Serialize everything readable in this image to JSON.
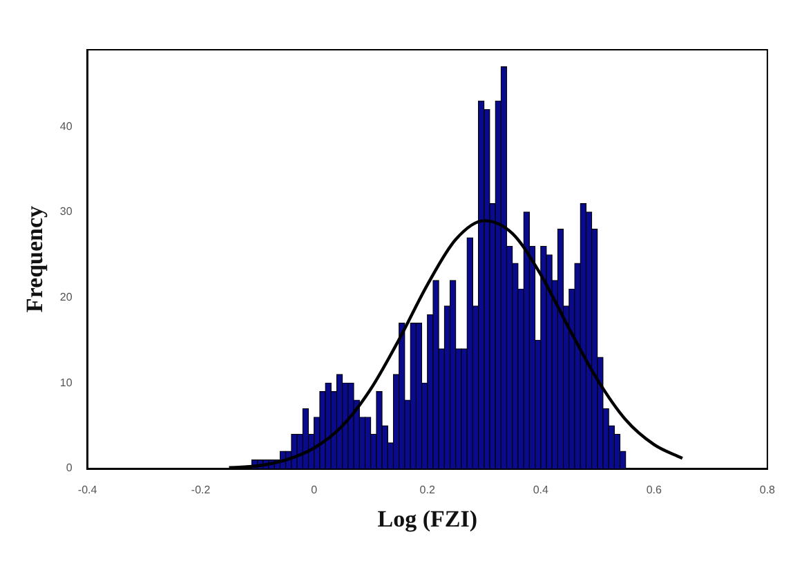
{
  "chart_data": {
    "type": "histogram",
    "xlabel": "Log (FZI)",
    "ylabel": "Frequency",
    "bins": [
      -0.11,
      -0.1,
      -0.09,
      -0.08,
      -0.07,
      -0.06,
      -0.05,
      -0.04,
      -0.03,
      -0.02,
      -0.01,
      0,
      0.01,
      0.02,
      0.03,
      0.04,
      0.05,
      0.06,
      0.07,
      0.08,
      0.09,
      0.1,
      0.11,
      0.12,
      0.13,
      0.14,
      0.15,
      0.16,
      0.17,
      0.18,
      0.19,
      0.2,
      0.21,
      0.22,
      0.23,
      0.24,
      0.25,
      0.26,
      0.27,
      0.28,
      0.29,
      0.3,
      0.31,
      0.32,
      0.33,
      0.34,
      0.35,
      0.36,
      0.37,
      0.38,
      0.39,
      0.4,
      0.41,
      0.42,
      0.43,
      0.44,
      0.45,
      0.46,
      0.47,
      0.48,
      0.49,
      0.5,
      0.51,
      0.52,
      0.53,
      0.54,
      0.55
    ],
    "values": [
      1,
      1,
      1,
      1,
      1,
      2,
      2,
      4,
      4,
      7,
      4,
      6,
      9,
      10,
      9,
      11,
      10,
      10,
      8,
      6,
      6,
      4,
      9,
      5,
      3,
      11,
      17,
      8,
      17,
      17,
      10,
      18,
      22,
      14,
      19,
      22,
      14,
      14,
      27,
      19,
      43,
      42,
      31,
      43,
      47,
      26,
      24,
      21,
      30,
      26,
      15,
      26,
      25,
      22,
      28,
      19,
      21,
      24,
      31,
      30,
      28,
      13,
      7,
      5,
      4,
      2
    ],
    "color": "#0a0a8c",
    "series": [
      {
        "type": "line",
        "color": "#000000",
        "x": [
          -0.15,
          -0.1,
          -0.05,
          0,
          0.05,
          0.1,
          0.15,
          0.2,
          0.25,
          0.3,
          0.35,
          0.4,
          0.45,
          0.5,
          0.55,
          0.6,
          0.65
        ],
        "values": [
          0.1,
          0.3,
          1,
          2.4,
          5,
          9.3,
          15.1,
          21.5,
          26.8,
          29,
          27.5,
          22.7,
          16.4,
          10.4,
          5.7,
          2.8,
          1.2
        ]
      }
    ],
    "xlim": [
      -0.4,
      0.8
    ],
    "xticks": [
      -0.4,
      -0.2,
      0,
      0.2,
      0.4,
      0.6,
      0.8
    ],
    "ylim": [
      0,
      49
    ],
    "yticks": [
      0,
      10,
      20,
      30,
      40
    ],
    "grid": false,
    "legend": false
  }
}
